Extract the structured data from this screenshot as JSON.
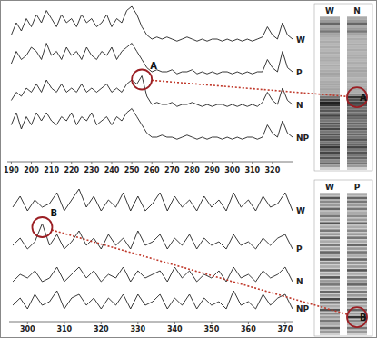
{
  "chart_data": [
    {
      "type": "line",
      "x": [
        190,
        192.5,
        195,
        197.5,
        200,
        202.5,
        205,
        207.5,
        210,
        212.5,
        215,
        217.5,
        220,
        222.5,
        225,
        227.5,
        230,
        232.5,
        235,
        237.5,
        240,
        242.5,
        245,
        247.5,
        250,
        252.5,
        255,
        257.5,
        260,
        262.5,
        265,
        267.5,
        270,
        272.5,
        275,
        277.5,
        280,
        282.5,
        285,
        287.5,
        290,
        292.5,
        295,
        297.5,
        300,
        302.5,
        305,
        307.5,
        310,
        312.5,
        315,
        317.5,
        320,
        322.5,
        325,
        327.5,
        330
      ],
      "xlim": [
        188,
        330
      ],
      "xticks": [
        190,
        200,
        210,
        220,
        230,
        240,
        250,
        260,
        270,
        280,
        290,
        300,
        310,
        320
      ],
      "ylim": [
        0,
        10
      ],
      "tick_labels": "x",
      "series": [
        {
          "name": "W",
          "color": "#222222",
          "values": [
            3,
            6,
            4,
            7,
            5,
            8,
            6,
            9,
            7,
            5,
            8,
            6,
            7,
            5,
            8,
            6,
            7,
            5,
            6,
            8,
            5,
            7,
            6,
            9,
            10,
            8,
            5,
            3,
            2,
            2.5,
            2,
            2.5,
            2,
            1.5,
            2,
            2.5,
            2,
            1.5,
            2,
            1.5,
            2,
            2,
            1.5,
            2,
            1.5,
            2,
            1.5,
            2,
            1.5,
            2,
            2.5,
            5,
            3,
            2,
            6,
            3,
            2
          ]
        },
        {
          "name": "P",
          "color": "#222222",
          "values": [
            4,
            7,
            5,
            6,
            8,
            7,
            5,
            9,
            6,
            7,
            5,
            8,
            6,
            7,
            5,
            8,
            6,
            5,
            7,
            6,
            8,
            5,
            7,
            8,
            9,
            7,
            5,
            3,
            2,
            2.5,
            2,
            2,
            2.5,
            1.5,
            2,
            2,
            2.5,
            1.5,
            2,
            1.5,
            2,
            1.5,
            2,
            2,
            1.5,
            2,
            1.5,
            2,
            1.5,
            2,
            2,
            5,
            3,
            2,
            7,
            3,
            2
          ]
        },
        {
          "name": "N",
          "color": "#222222",
          "values": [
            3,
            5,
            4,
            6,
            5,
            7,
            5,
            8,
            6,
            5,
            7,
            5,
            6,
            5,
            7,
            5,
            6,
            5,
            6,
            7,
            5,
            6,
            5,
            7,
            8,
            7,
            9,
            4,
            2,
            2.5,
            2,
            2,
            2.5,
            1.5,
            2,
            2,
            2.5,
            2,
            1.5,
            2,
            1.5,
            2,
            2,
            1.5,
            2,
            1.5,
            2,
            1.5,
            2,
            1.5,
            2.5,
            5,
            3,
            2,
            6,
            3,
            2
          ]
        },
        {
          "name": "NP",
          "color": "#222222",
          "values": [
            5,
            8,
            4,
            7,
            5,
            8,
            6,
            8,
            6,
            5,
            7,
            6,
            8,
            5,
            7,
            6,
            8,
            5,
            6,
            7,
            5,
            7,
            6,
            8,
            9,
            7,
            5,
            3,
            2,
            2,
            2.5,
            2,
            2,
            1.5,
            2,
            2.5,
            2,
            1.5,
            2,
            1.5,
            2,
            2,
            1.5,
            2,
            1.5,
            2,
            1.5,
            2,
            2,
            1.5,
            2,
            5,
            3,
            2,
            6,
            3,
            2
          ]
        }
      ],
      "annotations": [
        {
          "label": "A",
          "series": "N",
          "x": 255
        }
      ],
      "gel_lanes": [
        "W",
        "N"
      ]
    },
    {
      "type": "line",
      "x": [
        296,
        298,
        300,
        302,
        304,
        306,
        308,
        310,
        312,
        314,
        316,
        318,
        320,
        322,
        324,
        326,
        328,
        330,
        332,
        334,
        336,
        338,
        340,
        342,
        344,
        346,
        348,
        350,
        352,
        354,
        356,
        358,
        360,
        362,
        364,
        366,
        368,
        370,
        372
      ],
      "xlim": [
        295,
        372
      ],
      "xticks": [
        300,
        310,
        320,
        330,
        340,
        350,
        360,
        370
      ],
      "ylim": [
        0,
        10
      ],
      "tick_labels": "x",
      "series": [
        {
          "name": "W",
          "color": "#222222",
          "values": [
            3,
            6,
            2,
            5,
            3,
            4,
            7,
            2,
            5,
            8,
            3,
            6,
            2,
            5,
            3,
            7,
            2,
            6,
            2,
            4,
            7,
            2,
            6,
            3,
            5,
            2,
            6,
            3,
            5,
            2,
            7,
            3,
            5,
            2,
            6,
            3,
            4,
            7,
            2
          ]
        },
        {
          "name": "P",
          "color": "#222222",
          "values": [
            3,
            5,
            2,
            4,
            9,
            3,
            6,
            2,
            4,
            7,
            3,
            5,
            2,
            6,
            3,
            5,
            2,
            7,
            3,
            4,
            6,
            2,
            5,
            3,
            6,
            2,
            5,
            3,
            4,
            2,
            6,
            3,
            4,
            2,
            5,
            3,
            5,
            6,
            2
          ]
        },
        {
          "name": "N",
          "color": "#222222",
          "values": [
            2,
            4,
            3,
            5,
            2,
            3,
            6,
            2,
            4,
            6,
            3,
            5,
            2,
            4,
            3,
            6,
            2,
            5,
            3,
            4,
            5,
            2,
            6,
            3,
            5,
            2,
            4,
            3,
            5,
            2,
            6,
            3,
            4,
            2,
            5,
            3,
            4,
            6,
            2
          ]
        },
        {
          "name": "NP",
          "color": "#222222",
          "values": [
            3,
            5,
            2,
            6,
            3,
            4,
            7,
            2,
            5,
            6,
            3,
            5,
            2,
            5,
            3,
            6,
            2,
            6,
            3,
            4,
            6,
            2,
            5,
            3,
            6,
            2,
            5,
            3,
            4,
            2,
            7,
            3,
            4,
            2,
            6,
            3,
            5,
            6,
            2
          ]
        }
      ],
      "annotations": [
        {
          "label": "B",
          "series": "P",
          "x": 304
        }
      ],
      "gel_lanes": [
        "W",
        "P"
      ]
    }
  ]
}
